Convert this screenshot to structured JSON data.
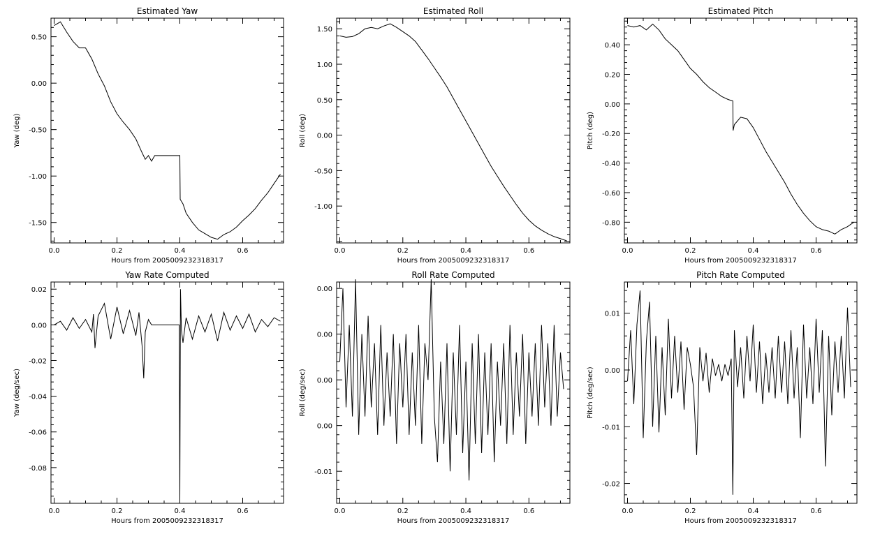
{
  "colors": {
    "background": "#ffffff",
    "axes": "#000000",
    "line": "#000000"
  },
  "chart_data": [
    {
      "type": "line",
      "title": "Estimated Yaw",
      "xlabel": "Hours from 2005009232318317",
      "ylabel": "Yaw (deg)",
      "xlim": [
        -0.01,
        0.73
      ],
      "ylim": [
        -1.72,
        0.7
      ],
      "xticks": [
        0.0,
        0.2,
        0.4,
        0.6
      ],
      "xtick_labels": [
        "0.0",
        "0.2",
        "0.4",
        "0.6"
      ],
      "yticks": [
        0.5,
        0.0,
        -0.5,
        -1.0,
        -1.5
      ],
      "ytick_labels": [
        "0.50",
        "0.00",
        "-0.50",
        "-1.00",
        "-1.50"
      ],
      "series": [
        {
          "x": [
            0.0,
            0.02,
            0.04,
            0.06,
            0.08,
            0.1,
            0.12,
            0.14,
            0.16,
            0.18,
            0.2,
            0.22,
            0.24,
            0.26,
            0.28,
            0.29,
            0.3,
            0.31,
            0.32,
            0.34,
            0.36,
            0.38,
            0.4,
            0.401,
            0.41,
            0.42,
            0.44,
            0.46,
            0.48,
            0.5,
            0.52,
            0.54,
            0.56,
            0.58,
            0.6,
            0.62,
            0.64,
            0.66,
            0.68,
            0.7,
            0.72
          ],
          "y": [
            0.62,
            0.66,
            0.55,
            0.45,
            0.38,
            0.38,
            0.26,
            0.1,
            -0.03,
            -0.2,
            -0.33,
            -0.42,
            -0.5,
            -0.6,
            -0.75,
            -0.82,
            -0.78,
            -0.84,
            -0.78,
            -0.78,
            -0.78,
            -0.78,
            -0.78,
            -1.25,
            -1.3,
            -1.4,
            -1.5,
            -1.58,
            -1.62,
            -1.66,
            -1.68,
            -1.63,
            -1.6,
            -1.55,
            -1.48,
            -1.42,
            -1.35,
            -1.26,
            -1.18,
            -1.08,
            -0.98
          ]
        }
      ]
    },
    {
      "type": "line",
      "title": "Estimated Roll",
      "xlabel": "Hours from 2005009232318317",
      "ylabel": "Roll (deg)",
      "xlim": [
        -0.01,
        0.73
      ],
      "ylim": [
        -1.52,
        1.65
      ],
      "xticks": [
        0.0,
        0.2,
        0.4,
        0.6
      ],
      "xtick_labels": [
        "0.0",
        "0.2",
        "0.4",
        "0.6"
      ],
      "yticks": [
        1.5,
        1.0,
        0.5,
        0.0,
        -0.5,
        -1.0
      ],
      "ytick_labels": [
        "1.50",
        "1.00",
        "0.50",
        "0.00",
        "-0.50",
        "-1.00"
      ],
      "series": [
        {
          "x": [
            0.0,
            0.02,
            0.04,
            0.06,
            0.08,
            0.1,
            0.12,
            0.14,
            0.16,
            0.18,
            0.2,
            0.22,
            0.24,
            0.26,
            0.28,
            0.3,
            0.32,
            0.34,
            0.36,
            0.38,
            0.4,
            0.42,
            0.44,
            0.46,
            0.48,
            0.5,
            0.52,
            0.54,
            0.56,
            0.58,
            0.6,
            0.62,
            0.64,
            0.66,
            0.68,
            0.7,
            0.72
          ],
          "y": [
            1.4,
            1.38,
            1.39,
            1.43,
            1.5,
            1.52,
            1.5,
            1.54,
            1.57,
            1.52,
            1.46,
            1.4,
            1.32,
            1.2,
            1.08,
            0.95,
            0.82,
            0.68,
            0.52,
            0.36,
            0.2,
            0.04,
            -0.12,
            -0.28,
            -0.44,
            -0.58,
            -0.72,
            -0.85,
            -0.98,
            -1.1,
            -1.2,
            -1.28,
            -1.34,
            -1.39,
            -1.43,
            -1.46,
            -1.49
          ]
        }
      ]
    },
    {
      "type": "line",
      "title": "Estimated Pitch",
      "xlabel": "Hours from 2005009232318317",
      "ylabel": "Pitch (deg)",
      "xlim": [
        -0.01,
        0.73
      ],
      "ylim": [
        -0.94,
        0.58
      ],
      "xticks": [
        0.0,
        0.2,
        0.4,
        0.6
      ],
      "xtick_labels": [
        "0.0",
        "0.2",
        "0.4",
        "0.6"
      ],
      "yticks": [
        0.4,
        0.2,
        0.0,
        -0.2,
        -0.4,
        -0.6,
        -0.8
      ],
      "ytick_labels": [
        "0.40",
        "0.20",
        "0.00",
        "-0.20",
        "-0.40",
        "-0.60",
        "-0.80"
      ],
      "series": [
        {
          "x": [
            0.0,
            0.02,
            0.04,
            0.06,
            0.08,
            0.1,
            0.12,
            0.14,
            0.16,
            0.18,
            0.2,
            0.22,
            0.24,
            0.26,
            0.28,
            0.3,
            0.32,
            0.335,
            0.336,
            0.34,
            0.36,
            0.38,
            0.4,
            0.42,
            0.44,
            0.46,
            0.48,
            0.5,
            0.52,
            0.54,
            0.56,
            0.58,
            0.6,
            0.62,
            0.64,
            0.66,
            0.68,
            0.7,
            0.72
          ],
          "y": [
            0.53,
            0.52,
            0.53,
            0.5,
            0.54,
            0.5,
            0.44,
            0.4,
            0.36,
            0.3,
            0.24,
            0.2,
            0.15,
            0.11,
            0.08,
            0.05,
            0.03,
            0.02,
            -0.18,
            -0.14,
            -0.09,
            -0.1,
            -0.16,
            -0.24,
            -0.32,
            -0.39,
            -0.46,
            -0.53,
            -0.61,
            -0.68,
            -0.74,
            -0.79,
            -0.83,
            -0.85,
            -0.86,
            -0.88,
            -0.85,
            -0.83,
            -0.8
          ]
        }
      ]
    },
    {
      "type": "line",
      "title": "Yaw Rate Computed",
      "xlabel": "Hours from 2005009232318317",
      "ylabel": "Yaw (deg/sec)",
      "xlim": [
        -0.01,
        0.73
      ],
      "ylim": [
        -0.1,
        0.024
      ],
      "xticks": [
        0.0,
        0.2,
        0.4,
        0.6
      ],
      "xtick_labels": [
        "0.0",
        "0.2",
        "0.4",
        "0.6"
      ],
      "yticks": [
        0.02,
        0.0,
        -0.02,
        -0.04,
        -0.06,
        -0.08
      ],
      "ytick_labels": [
        "0.02",
        "0.00",
        "-0.02",
        "-0.04",
        "-0.06",
        "-0.08"
      ],
      "series": [
        {
          "x": [
            0.0,
            0.02,
            0.04,
            0.06,
            0.08,
            0.1,
            0.12,
            0.125,
            0.13,
            0.14,
            0.16,
            0.18,
            0.2,
            0.22,
            0.24,
            0.26,
            0.27,
            0.28,
            0.285,
            0.29,
            0.3,
            0.31,
            0.32,
            0.34,
            0.36,
            0.38,
            0.398,
            0.4,
            0.402,
            0.405,
            0.41,
            0.42,
            0.44,
            0.46,
            0.48,
            0.5,
            0.52,
            0.54,
            0.56,
            0.58,
            0.6,
            0.62,
            0.64,
            0.66,
            0.68,
            0.7,
            0.72
          ],
          "y": [
            0.0,
            0.002,
            -0.003,
            0.004,
            -0.002,
            0.003,
            -0.004,
            0.006,
            -0.013,
            0.005,
            0.012,
            -0.008,
            0.01,
            -0.005,
            0.008,
            -0.006,
            0.007,
            -0.012,
            -0.03,
            -0.004,
            0.003,
            0.0,
            0.0,
            0.0,
            0.0,
            0.0,
            0.0,
            -0.098,
            0.02,
            -0.003,
            -0.01,
            0.004,
            -0.008,
            0.005,
            -0.004,
            0.006,
            -0.009,
            0.007,
            -0.003,
            0.005,
            -0.002,
            0.006,
            -0.004,
            0.003,
            -0.001,
            0.004,
            0.002
          ]
        }
      ]
    },
    {
      "type": "line",
      "title": "Roll Rate Computed",
      "xlabel": "Hours from 2005009232318317",
      "ylabel": "Roll (deg/sec)",
      "xlim": [
        -0.01,
        0.73
      ],
      "ylim": [
        -0.0135,
        0.0107
      ],
      "xticks": [
        0.0,
        0.2,
        0.4,
        0.6
      ],
      "xtick_labels": [
        "0.0",
        "0.2",
        "0.4",
        "0.6"
      ],
      "yticks": [
        0.01,
        0.005,
        0.0,
        -0.005,
        -0.01
      ],
      "ytick_labels": [
        "0.00",
        "0.00",
        "0.00",
        "0.00",
        "-0.01"
      ],
      "series": [
        {
          "x": [
            0.0,
            0.01,
            0.02,
            0.03,
            0.04,
            0.05,
            0.06,
            0.07,
            0.08,
            0.09,
            0.1,
            0.11,
            0.12,
            0.13,
            0.14,
            0.15,
            0.16,
            0.17,
            0.18,
            0.19,
            0.2,
            0.21,
            0.22,
            0.23,
            0.24,
            0.25,
            0.26,
            0.27,
            0.28,
            0.29,
            0.3,
            0.31,
            0.32,
            0.33,
            0.34,
            0.35,
            0.36,
            0.37,
            0.38,
            0.39,
            0.4,
            0.41,
            0.42,
            0.43,
            0.44,
            0.45,
            0.46,
            0.47,
            0.48,
            0.49,
            0.5,
            0.51,
            0.52,
            0.53,
            0.54,
            0.55,
            0.56,
            0.57,
            0.58,
            0.59,
            0.6,
            0.61,
            0.62,
            0.63,
            0.64,
            0.65,
            0.66,
            0.67,
            0.68,
            0.69,
            0.7,
            0.71
          ],
          "y": [
            0.002,
            0.01,
            -0.003,
            0.006,
            -0.004,
            0.011,
            -0.006,
            0.005,
            -0.004,
            0.007,
            -0.003,
            0.004,
            -0.006,
            0.006,
            -0.005,
            0.003,
            -0.004,
            0.005,
            -0.007,
            0.004,
            -0.003,
            0.005,
            -0.006,
            0.003,
            -0.005,
            0.006,
            -0.007,
            0.004,
            0.0,
            0.011,
            -0.004,
            -0.009,
            0.002,
            -0.007,
            0.004,
            -0.01,
            0.003,
            -0.006,
            0.006,
            -0.008,
            0.002,
            -0.011,
            0.004,
            -0.007,
            0.005,
            -0.008,
            0.003,
            -0.006,
            0.004,
            -0.009,
            0.002,
            -0.005,
            0.004,
            -0.007,
            0.006,
            -0.006,
            0.003,
            -0.004,
            0.005,
            -0.007,
            0.003,
            -0.004,
            0.004,
            -0.005,
            0.006,
            -0.003,
            0.004,
            -0.005,
            0.006,
            -0.004,
            0.003,
            -0.001
          ]
        }
      ]
    },
    {
      "type": "line",
      "title": "Pitch Rate Computed",
      "xlabel": "Hours from 2005009232318317",
      "ylabel": "Pitch (deg/sec)",
      "xlim": [
        -0.01,
        0.73
      ],
      "ylim": [
        -0.0235,
        0.0155
      ],
      "xticks": [
        0.0,
        0.2,
        0.4,
        0.6
      ],
      "xtick_labels": [
        "0.0",
        "0.2",
        "0.4",
        "0.6"
      ],
      "yticks": [
        0.01,
        0.0,
        -0.01,
        -0.02
      ],
      "ytick_labels": [
        "0.01",
        "0.00",
        "-0.01",
        "-0.02"
      ],
      "series": [
        {
          "x": [
            0.0,
            0.01,
            0.02,
            0.03,
            0.04,
            0.05,
            0.06,
            0.07,
            0.08,
            0.09,
            0.1,
            0.11,
            0.12,
            0.13,
            0.14,
            0.15,
            0.16,
            0.17,
            0.18,
            0.19,
            0.2,
            0.21,
            0.22,
            0.23,
            0.24,
            0.25,
            0.26,
            0.27,
            0.28,
            0.29,
            0.3,
            0.31,
            0.32,
            0.33,
            0.335,
            0.34,
            0.35,
            0.36,
            0.37,
            0.38,
            0.39,
            0.4,
            0.41,
            0.42,
            0.43,
            0.44,
            0.45,
            0.46,
            0.47,
            0.48,
            0.49,
            0.5,
            0.51,
            0.52,
            0.53,
            0.54,
            0.55,
            0.56,
            0.57,
            0.58,
            0.59,
            0.6,
            0.61,
            0.62,
            0.63,
            0.64,
            0.65,
            0.66,
            0.67,
            0.68,
            0.69,
            0.7,
            0.71
          ],
          "y": [
            -0.002,
            0.007,
            -0.006,
            0.008,
            0.014,
            -0.012,
            0.005,
            0.012,
            -0.01,
            0.006,
            -0.011,
            0.004,
            -0.008,
            0.009,
            -0.005,
            0.006,
            -0.004,
            0.005,
            -0.007,
            0.004,
            0.001,
            -0.003,
            -0.015,
            0.004,
            -0.002,
            0.003,
            -0.004,
            0.002,
            -0.001,
            0.001,
            -0.002,
            0.001,
            -0.001,
            0.002,
            -0.022,
            0.007,
            -0.003,
            0.004,
            -0.005,
            0.006,
            -0.002,
            0.008,
            -0.004,
            0.005,
            -0.006,
            0.003,
            -0.004,
            0.004,
            -0.005,
            0.006,
            -0.004,
            0.005,
            -0.006,
            0.007,
            -0.005,
            0.004,
            -0.012,
            0.008,
            -0.005,
            0.004,
            -0.006,
            0.009,
            -0.004,
            0.007,
            -0.017,
            0.006,
            -0.008,
            0.005,
            -0.004,
            0.006,
            -0.005,
            0.011,
            -0.003
          ]
        }
      ]
    }
  ]
}
